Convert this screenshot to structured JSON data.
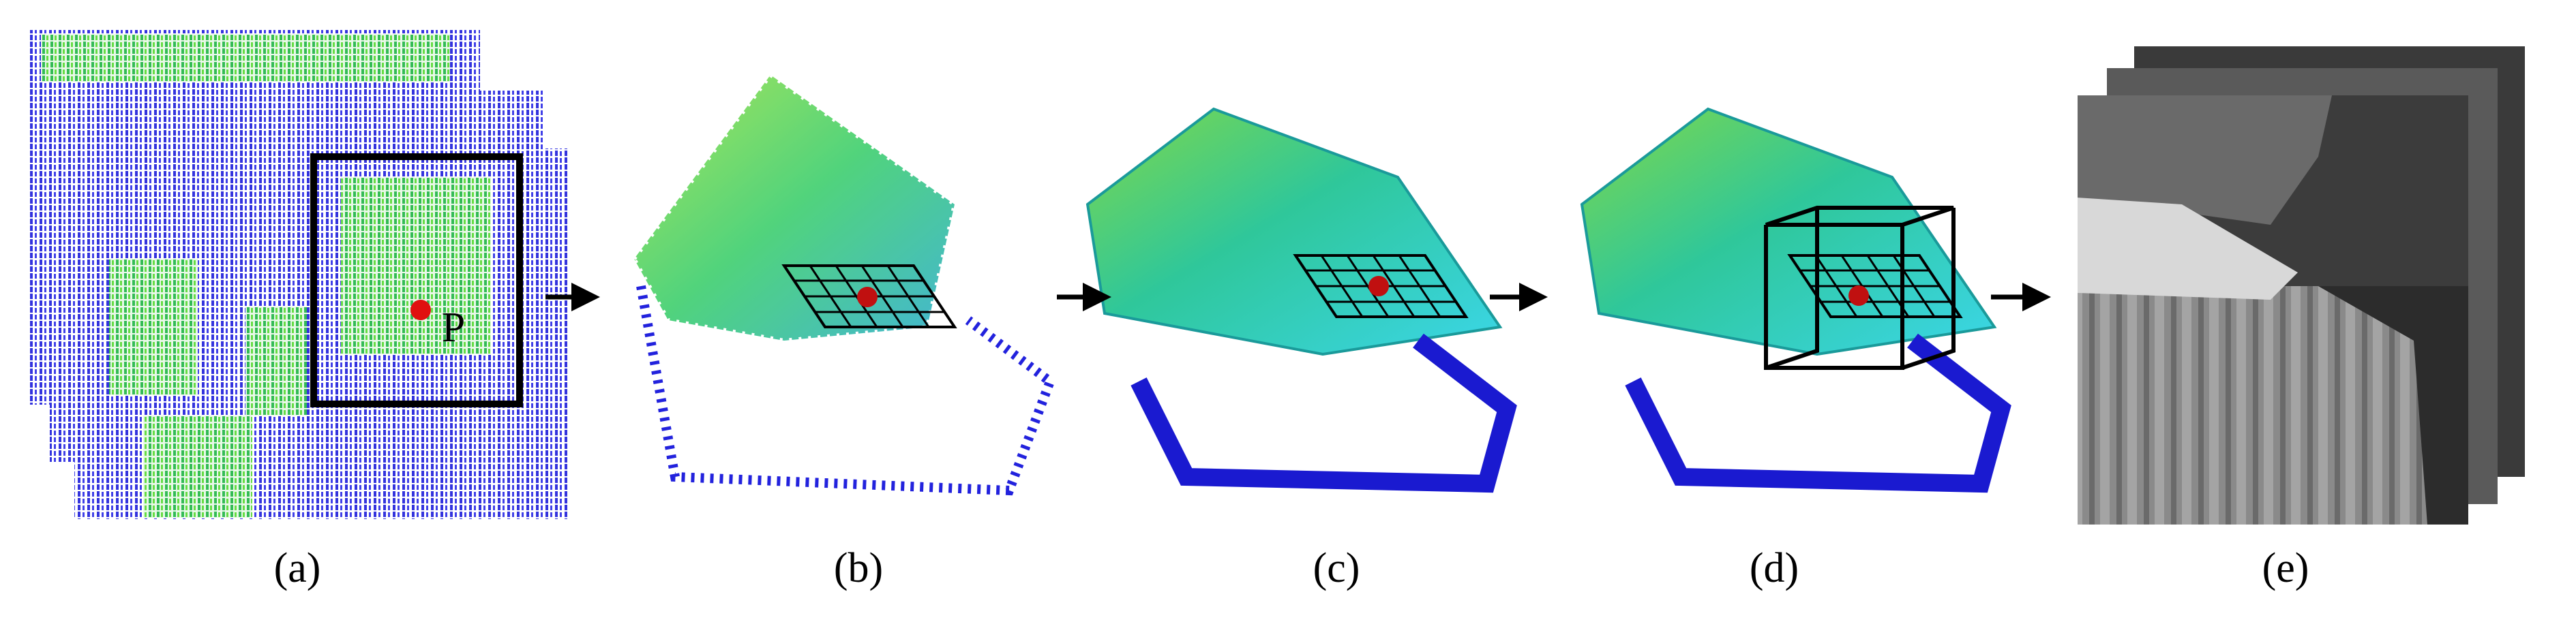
{
  "point_label": "P",
  "panels": [
    {
      "label": "(a)"
    },
    {
      "label": "(b)"
    },
    {
      "label": "(c)"
    },
    {
      "label": "(d)"
    },
    {
      "label": "(e)"
    }
  ]
}
